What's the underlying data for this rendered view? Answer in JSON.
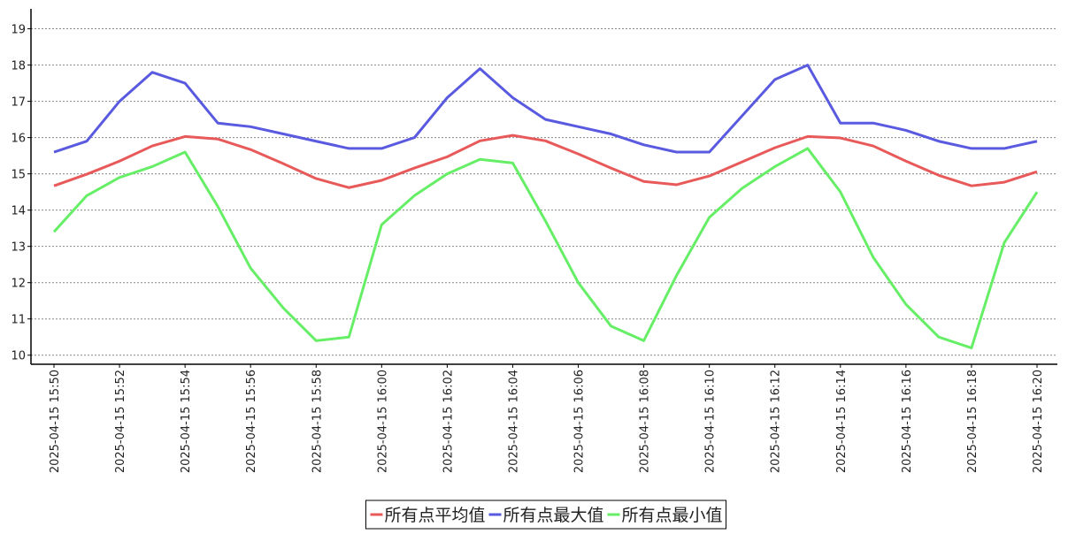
{
  "chart_data": {
    "type": "line",
    "categories": [
      "2025-04-15 15:50",
      null,
      "2025-04-15 15:52",
      null,
      "2025-04-15 15:54",
      null,
      "2025-04-15 15:56",
      null,
      "2025-04-15 15:58",
      null,
      "2025-04-15 16:00",
      null,
      "2025-04-15 16:02",
      null,
      "2025-04-15 16:04",
      null,
      "2025-04-15 16:06",
      null,
      "2025-04-15 16:08",
      null,
      "2025-04-15 16:10",
      null,
      "2025-04-15 16:12",
      null,
      "2025-04-15 16:14",
      null,
      "2025-04-15 16:16",
      null,
      "2025-04-15 16:18",
      null,
      "2025-04-15 16:20"
    ],
    "series": [
      {
        "name": "所有点平均值",
        "color": "#e85a5a",
        "values": [
          14.67,
          14.99,
          15.35,
          15.77,
          16.03,
          15.96,
          15.67,
          15.28,
          14.87,
          14.62,
          14.82,
          15.16,
          15.47,
          15.91,
          16.06,
          15.91,
          15.55,
          15.16,
          14.79,
          14.7,
          14.94,
          15.33,
          15.72,
          16.03,
          15.99,
          15.77,
          15.35,
          14.96,
          14.67,
          14.77,
          15.06
        ]
      },
      {
        "name": "所有点最大值",
        "color": "#5a5ae0",
        "values": [
          15.6,
          15.9,
          17.0,
          17.8,
          17.5,
          16.4,
          16.3,
          16.1,
          15.9,
          15.7,
          15.7,
          16.0,
          17.1,
          17.9,
          17.1,
          16.5,
          16.3,
          16.1,
          15.8,
          15.6,
          15.6,
          16.6,
          17.6,
          18.0,
          16.4,
          16.4,
          16.2,
          15.9,
          15.7,
          15.7,
          15.9
        ]
      },
      {
        "name": "所有点最小值",
        "color": "#66ee66",
        "values": [
          13.4,
          14.4,
          14.9,
          15.2,
          15.6,
          14.1,
          12.4,
          11.3,
          10.4,
          10.5,
          13.6,
          14.4,
          15.0,
          15.4,
          15.3,
          13.7,
          12.0,
          10.8,
          10.4,
          12.2,
          13.8,
          14.6,
          15.2,
          15.7,
          14.5,
          12.7,
          11.4,
          10.5,
          10.2,
          13.1,
          14.5
        ]
      }
    ],
    "ylim": [
      9.75,
      19.55
    ],
    "yticks": [
      10,
      11,
      12,
      13,
      14,
      15,
      16,
      17,
      18,
      19
    ],
    "grid": true
  }
}
